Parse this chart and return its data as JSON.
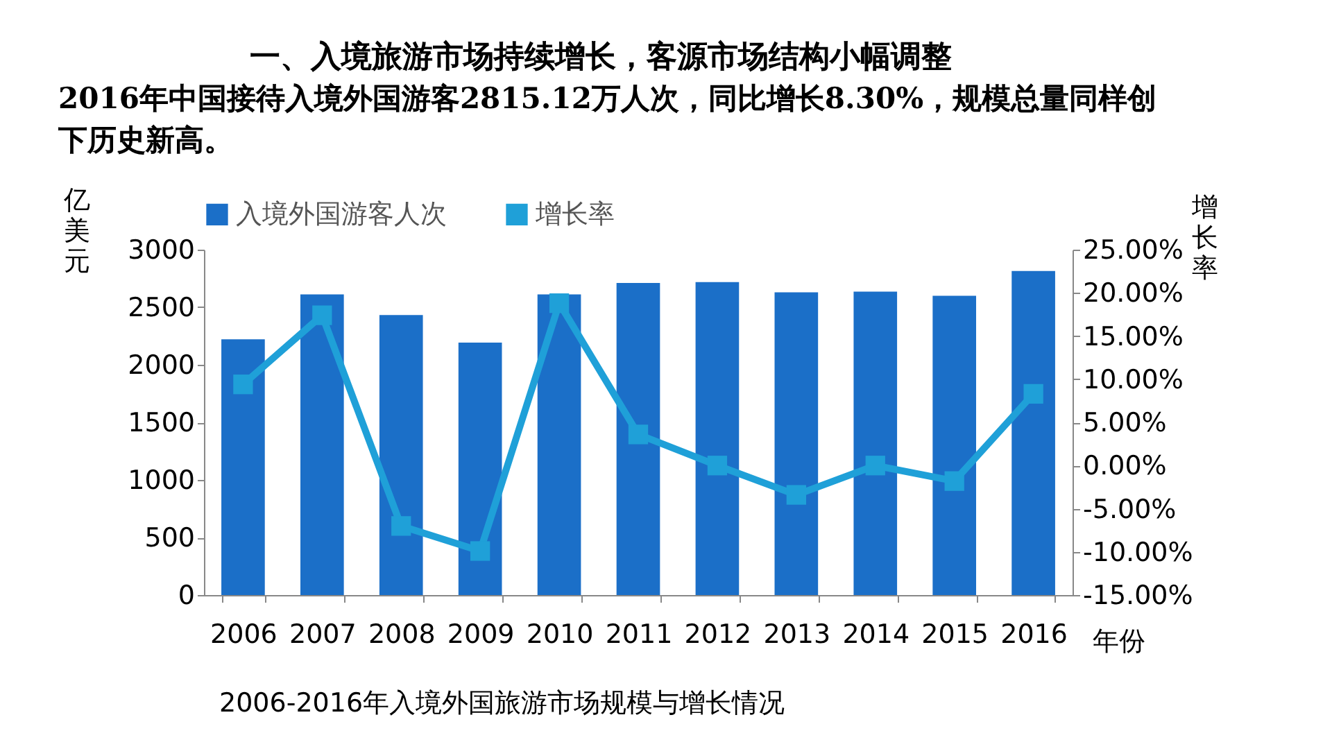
{
  "chart_data": {
    "type": "bar",
    "title": "一、入境旅游市场持续增长，客源市场结构小幅调整",
    "subtitle": "2016年中国接待入境外国游客2815.12万人次，同比增长8.30%，规模总量同样创下历史新高。",
    "xlabel": "年份",
    "ylabel": "亿美元",
    "y2label": "增长率",
    "annotations": [
      "2006-2016年入境外国旅游市场规模与增长情况"
    ],
    "categories": [
      "2006",
      "2007",
      "2008",
      "2009",
      "2010",
      "2011",
      "2012",
      "2013",
      "2014",
      "2015",
      "2016"
    ],
    "series": [
      {
        "name": "入境外国游客人次",
        "color": "#1b6fc8",
        "values": [
          2221,
          2611,
          2432,
          2193,
          2612,
          2711,
          2719,
          2629,
          2636,
          2599,
          2815
        ]
      },
      {
        "name": "增长率",
        "color": "#1fa0d8",
        "type": "line",
        "axis": "y2",
        "marker": "square",
        "values": [
          9.4,
          17.4,
          -7.0,
          -9.9,
          18.8,
          3.6,
          0.0,
          -3.4,
          0.0,
          -1.8,
          8.3
        ]
      }
    ],
    "ylim": [
      0,
      3000
    ],
    "yticks": [
      0,
      500,
      1000,
      1500,
      2000,
      2500,
      3000
    ],
    "y2lim": [
      -15,
      25
    ],
    "y2ticks": [
      {
        "value": -15,
        "label": "-15.00%"
      },
      {
        "value": -10,
        "label": "-10.00%"
      },
      {
        "value": -5,
        "label": "-5.00%"
      },
      {
        "value": 0,
        "label": "0.00%"
      },
      {
        "value": 5,
        "label": "5.00%"
      },
      {
        "value": 10,
        "label": "10.00%"
      },
      {
        "value": 15,
        "label": "15.00%"
      },
      {
        "value": 20,
        "label": "20.00%"
      },
      {
        "value": 25,
        "label": "25.00%"
      }
    ],
    "grid": false,
    "legend": "top"
  }
}
